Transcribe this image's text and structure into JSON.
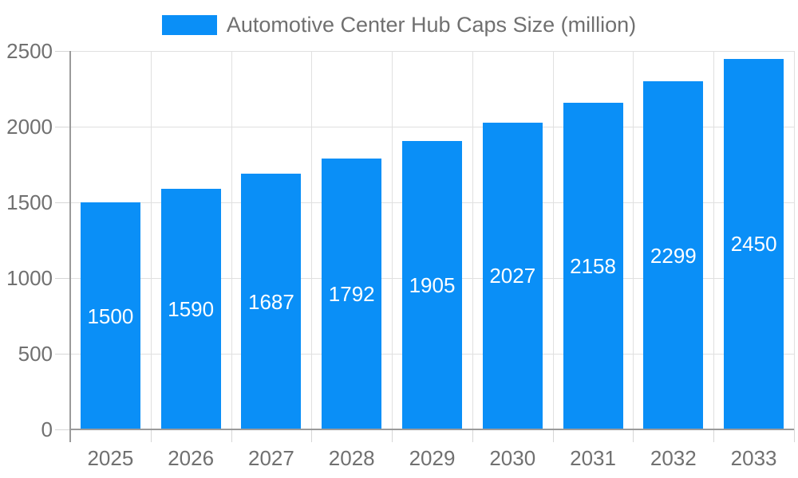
{
  "legend": {
    "label": "Automotive Center Hub Caps Size (million)"
  },
  "colors": {
    "bar": "#0a8ff7",
    "grid": "#e0e0e0",
    "tick": "#d6d6d6",
    "axis": "#9a9a9a",
    "axis_label": "#707070",
    "value_label": "#ffffff",
    "background": "#ffffff"
  },
  "chart_data": {
    "type": "bar",
    "title": "Automotive Center Hub Caps Size (million)",
    "categories": [
      "2025",
      "2026",
      "2027",
      "2028",
      "2029",
      "2030",
      "2031",
      "2032",
      "2033"
    ],
    "values": [
      1500,
      1590,
      1687,
      1792,
      1905,
      2027,
      2158,
      2299,
      2450
    ],
    "series": [
      {
        "name": "Automotive Center Hub Caps Size (million)",
        "values": [
          1500,
          1590,
          1687,
          1792,
          1905,
          2027,
          2158,
          2299,
          2450
        ]
      }
    ],
    "xlabel": "",
    "ylabel": "",
    "ylim": [
      0,
      2500
    ],
    "yticks": [
      0,
      500,
      1000,
      1500,
      2000,
      2500
    ],
    "grid": true,
    "legend_position": "top",
    "value_labels": "inside-center"
  }
}
